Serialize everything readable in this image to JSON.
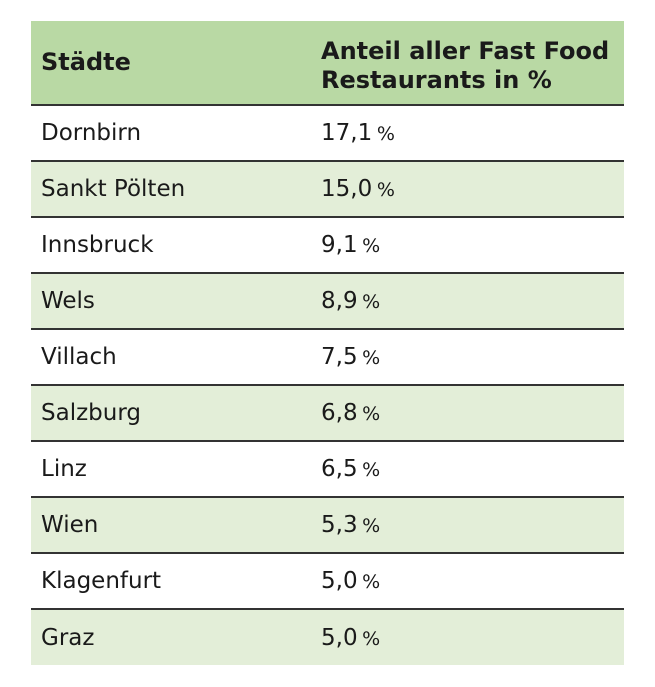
{
  "header": {
    "city": "Städte",
    "share_line1": "Anteil aller Fast Food",
    "share_line2": "Restaurants in %"
  },
  "rows": [
    {
      "city": "Dornbirn",
      "value": "17,1",
      "unit": "%"
    },
    {
      "city": "Sankt Pölten",
      "value": "15,0",
      "unit": "%"
    },
    {
      "city": "Innsbruck",
      "value": "9,1",
      "unit": "%"
    },
    {
      "city": "Wels",
      "value": "8,9",
      "unit": "%"
    },
    {
      "city": "Villach",
      "value": "7,5",
      "unit": "%"
    },
    {
      "city": "Salzburg",
      "value": "6,8",
      "unit": "%"
    },
    {
      "city": "Linz",
      "value": "6,5",
      "unit": "%"
    },
    {
      "city": "Wien",
      "value": "5,3",
      "unit": "%"
    },
    {
      "city": "Klagenfurt",
      "value": "5,0",
      "unit": "%"
    },
    {
      "city": "Graz",
      "value": "5,0",
      "unit": "%"
    }
  ],
  "colors": {
    "header_bg": "#b9d9a4",
    "alt_row_bg": "#e3eed8",
    "rule": "#333333"
  }
}
